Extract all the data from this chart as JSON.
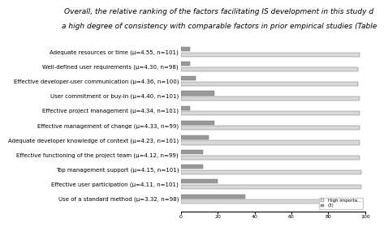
{
  "categories": [
    "Adequate resources or time (μ=4.55, n=101)",
    "Well-defined user requirements (μ=4.30, n=98)",
    "Effective developer-user communication (μ=4.36, n=100)",
    "User commitment or buy-in (μ=4.40, n=101)",
    "Effective project management (μ=4.34, n=101)",
    "Effective management of change (μ=4.33, n=99)",
    "Adequate developer knowledge of context (μ=4.23, n=101)",
    "Effective functioning of the project team (μ=4.12, n=99)",
    "Top management support (μ=4.15, n=101)",
    "Effective user participation (μ=4.11, n=101)",
    "Use of a standard method (μ=3.32, n=98)"
  ],
  "high_importance": [
    97,
    96,
    96,
    97,
    97,
    97,
    97,
    97,
    98,
    98,
    80
  ],
  "second_values": [
    5,
    5,
    8,
    18,
    5,
    18,
    15,
    12,
    12,
    20,
    35
  ],
  "color_high": "#d8d8d8",
  "color_second": "#999999",
  "bg_color": "#ffffff",
  "legend_high": "High importa...",
  "legend_second": "(3)",
  "title_line1": "Overall, the relative ranking of the factors facilitating IS development in this study d",
  "title_line2": "a high degree of consistency with comparable factors in prior empirical studies (Table",
  "title_fontsize": 6.5,
  "label_fontsize": 5.0,
  "bar_height": 0.28,
  "bar_gap": 0.08,
  "xlim": [
    0,
    100
  ]
}
